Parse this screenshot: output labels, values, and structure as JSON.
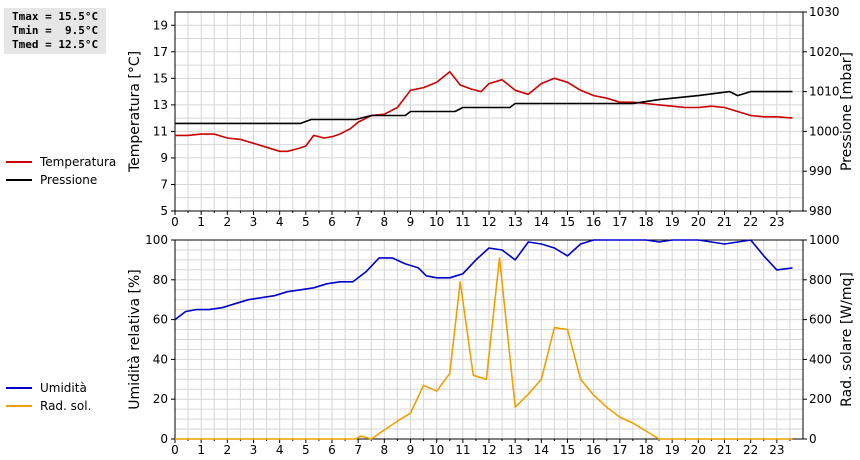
{
  "stats": {
    "tmax": "Tmax = 15.5°C",
    "tmin": "Tmin =  9.5°C",
    "tmed": "Tmed = 12.5°C"
  },
  "chart_data": [
    {
      "type": "line",
      "xlim": [
        0,
        24
      ],
      "x_ticks": [
        "0",
        "1",
        "2",
        "3",
        "4",
        "5",
        "6",
        "7",
        "8",
        "9",
        "10",
        "11",
        "12",
        "13",
        "14",
        "15",
        "16",
        "17",
        "18",
        "19",
        "20",
        "21",
        "22",
        "23"
      ],
      "left_axis": {
        "label": "Temperatura [°C]",
        "ylim": [
          5,
          20
        ],
        "ticks": [
          5,
          7,
          9,
          11,
          13,
          15,
          17,
          19
        ]
      },
      "right_axis": {
        "label": "Pressione [mbar]",
        "ylim": [
          980,
          1030
        ],
        "ticks": [
          980,
          990,
          1000,
          1010,
          1020,
          1030
        ]
      },
      "grid": true,
      "legend_position": "left",
      "series": [
        {
          "name": "Temperatura",
          "axis": "left",
          "color": "#cc0000",
          "x": [
            0,
            0.5,
            1,
            1.5,
            2,
            2.5,
            3,
            3.5,
            4,
            4.3,
            4.7,
            5,
            5.3,
            5.7,
            6,
            6.3,
            6.7,
            7,
            7.5,
            8,
            8.5,
            9,
            9.5,
            10,
            10.5,
            10.9,
            11.3,
            11.7,
            12,
            12.5,
            13,
            13.5,
            14,
            14.5,
            15,
            15.5,
            16,
            16.5,
            17,
            17.5,
            18,
            18.5,
            19,
            19.5,
            20,
            20.5,
            21,
            21.5,
            22,
            22.5,
            23,
            23.6
          ],
          "y": [
            10.7,
            10.7,
            10.8,
            10.8,
            10.5,
            10.4,
            10.1,
            9.8,
            9.5,
            9.5,
            9.7,
            9.9,
            10.7,
            10.5,
            10.6,
            10.8,
            11.2,
            11.7,
            12.2,
            12.3,
            12.8,
            14.1,
            14.3,
            14.7,
            15.5,
            14.5,
            14.2,
            14.0,
            14.6,
            14.9,
            14.1,
            13.8,
            14.6,
            15.0,
            14.7,
            14.1,
            13.7,
            13.5,
            13.2,
            13.2,
            13.1,
            13.0,
            12.9,
            12.8,
            12.8,
            12.9,
            12.8,
            12.5,
            12.2,
            12.1,
            12.1,
            12.0
          ]
        },
        {
          "name": "Pressione",
          "axis": "right",
          "color": "#000000",
          "x": [
            0,
            4.8,
            5.2,
            6.9,
            7.5,
            8.8,
            9.0,
            10.7,
            11.0,
            12.8,
            13.0,
            17.5,
            18.5,
            20.0,
            21.2,
            21.5,
            22.0,
            23.6
          ],
          "y": [
            1002,
            1002,
            1003,
            1003,
            1004,
            1004,
            1005,
            1005,
            1006,
            1006,
            1007,
            1007,
            1008,
            1009,
            1010,
            1009,
            1010,
            1010
          ]
        }
      ]
    },
    {
      "type": "line",
      "xlim": [
        0,
        24
      ],
      "x_ticks": [
        "0",
        "1",
        "2",
        "3",
        "4",
        "5",
        "6",
        "7",
        "8",
        "9",
        "10",
        "11",
        "12",
        "13",
        "14",
        "15",
        "16",
        "17",
        "18",
        "19",
        "20",
        "21",
        "22",
        "23"
      ],
      "left_axis": {
        "label": "Umidità relativa [%]",
        "ylim": [
          0,
          100
        ],
        "ticks": [
          0,
          20,
          40,
          60,
          80,
          100
        ]
      },
      "right_axis": {
        "label": "Rad. solare [W/mq]",
        "ylim": [
          0,
          1000
        ],
        "ticks": [
          0,
          200,
          400,
          600,
          800,
          1000
        ]
      },
      "grid": true,
      "legend_position": "left",
      "series": [
        {
          "name": "Umidità",
          "axis": "left",
          "color": "#0000cc",
          "x": [
            0,
            0.4,
            0.8,
            1.3,
            1.8,
            2.3,
            2.8,
            3.3,
            3.8,
            4.3,
            4.8,
            5.3,
            5.8,
            6.3,
            6.8,
            7.3,
            7.8,
            8.3,
            8.8,
            9.3,
            9.6,
            10,
            10.5,
            11,
            11.5,
            12,
            12.5,
            13,
            13.5,
            14,
            14.5,
            15,
            15.5,
            16,
            17,
            18,
            18.5,
            19,
            20,
            21,
            22,
            22.5,
            23,
            23.6
          ],
          "y": [
            60,
            64,
            65,
            65,
            66,
            68,
            70,
            71,
            72,
            74,
            75,
            76,
            78,
            79,
            79,
            84,
            91,
            91,
            88,
            86,
            82,
            81,
            81,
            83,
            90,
            96,
            95,
            90,
            99,
            98,
            96,
            92,
            98,
            100,
            100,
            100,
            99,
            100,
            100,
            98,
            100,
            92,
            85,
            86
          ]
        },
        {
          "name": "Rad. sol.",
          "axis": "right",
          "color": "#f0a000",
          "x": [
            0,
            1,
            2,
            3,
            4,
            5,
            6,
            6.9,
            7.1,
            7.5,
            8,
            8.5,
            9,
            9.5,
            10,
            10.5,
            10.9,
            11.4,
            11.9,
            12.4,
            13,
            13.5,
            14,
            14.5,
            15,
            15.5,
            16,
            16.5,
            17,
            17.5,
            18,
            18.5,
            19,
            20,
            21,
            22,
            23,
            23.6
          ],
          "y": [
            0,
            0,
            0,
            0,
            0,
            0,
            0,
            0,
            15,
            0,
            45,
            90,
            130,
            270,
            240,
            330,
            790,
            320,
            300,
            910,
            160,
            225,
            300,
            560,
            550,
            300,
            220,
            160,
            110,
            80,
            40,
            0,
            0,
            0,
            0,
            0,
            0,
            0
          ]
        }
      ]
    }
  ]
}
